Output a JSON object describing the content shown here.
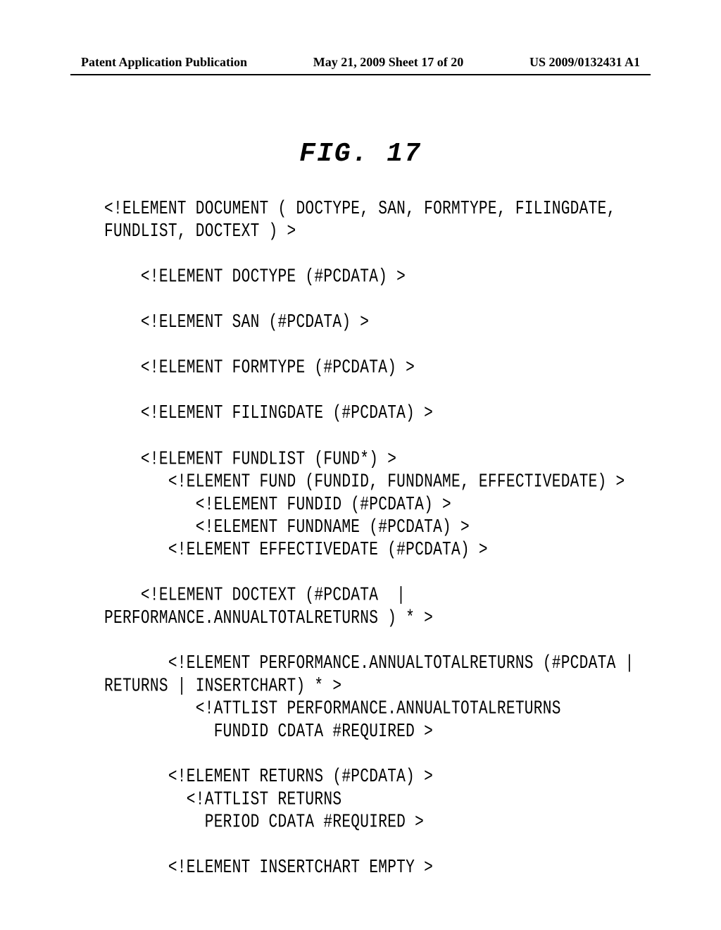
{
  "header": {
    "left": "Patent Application Publication",
    "center": "May 21, 2009  Sheet 17 of 20",
    "right": "US 2009/0132431 A1"
  },
  "figure": {
    "title": "FIG. 17"
  },
  "code": {
    "lines": [
      "<!ELEMENT DOCUMENT ( DOCTYPE, SAN, FORMTYPE, FILINGDATE,",
      "FUNDLIST, DOCTEXT ) >",
      "",
      "    <!ELEMENT DOCTYPE (#PCDATA) >",
      "",
      "    <!ELEMENT SAN (#PCDATA) >",
      "",
      "    <!ELEMENT FORMTYPE (#PCDATA) >",
      "",
      "    <!ELEMENT FILINGDATE (#PCDATA) >",
      "",
      "    <!ELEMENT FUNDLIST (FUND*) >",
      "       <!ELEMENT FUND (FUNDID, FUNDNAME, EFFECTIVEDATE) >",
      "          <!ELEMENT FUNDID (#PCDATA) >",
      "          <!ELEMENT FUNDNAME (#PCDATA) >",
      "       <!ELEMENT EFFECTIVEDATE (#PCDATA) >",
      "",
      "    <!ELEMENT DOCTEXT (#PCDATA  |",
      "PERFORMANCE.ANNUALTOTALRETURNS ) * >",
      "",
      "       <!ELEMENT PERFORMANCE.ANNUALTOTALRETURNS (#PCDATA |",
      "RETURNS | INSERTCHART) * >",
      "          <!ATTLIST PERFORMANCE.ANNUALTOTALRETURNS",
      "            FUNDID CDATA #REQUIRED >",
      "",
      "       <!ELEMENT RETURNS (#PCDATA) >",
      "         <!ATTLIST RETURNS",
      "           PERIOD CDATA #REQUIRED >",
      "",
      "       <!ELEMENT INSERTCHART EMPTY >"
    ]
  }
}
